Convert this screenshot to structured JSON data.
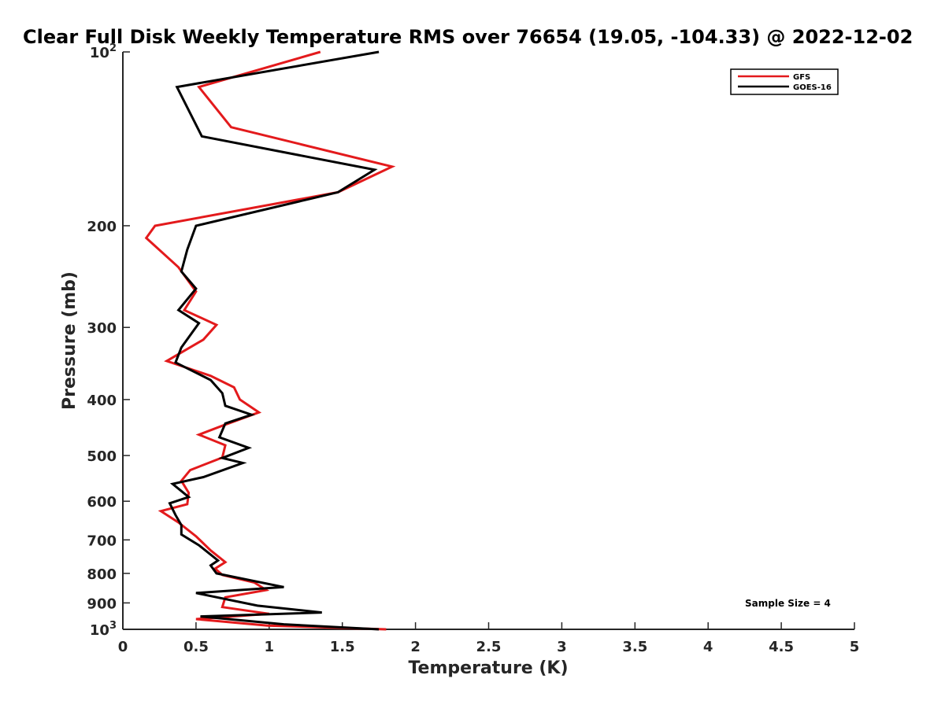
{
  "chart_data": {
    "type": "line",
    "title": "Clear Full Disk Weekly Temperature RMS over 76654 (19.05, -104.33) @ 2022-12-02",
    "xlabel": "Temperature (K)",
    "ylabel": "Pressure (mb)",
    "xlim": [
      0,
      5
    ],
    "ylim": [
      100,
      1000
    ],
    "y_scale": "log",
    "y_reversed": true,
    "grid": false,
    "legend_position": "top-right",
    "x_ticks": [
      0,
      0.5,
      1,
      1.5,
      2,
      2.5,
      3,
      3.5,
      4,
      4.5,
      5
    ],
    "x_tick_labels": [
      "0",
      "0.5",
      "1",
      "1.5",
      "2",
      "2.5",
      "3",
      "3.5",
      "4",
      "4.5",
      "5"
    ],
    "y_ticks": [
      {
        "value": 100,
        "label": "10",
        "sup": "2"
      },
      {
        "value": 200,
        "label": "200",
        "sup": ""
      },
      {
        "value": 300,
        "label": "300",
        "sup": ""
      },
      {
        "value": 400,
        "label": "400",
        "sup": ""
      },
      {
        "value": 500,
        "label": "500",
        "sup": ""
      },
      {
        "value": 600,
        "label": "600",
        "sup": ""
      },
      {
        "value": 700,
        "label": "700",
        "sup": ""
      },
      {
        "value": 800,
        "label": "800",
        "sup": ""
      },
      {
        "value": 900,
        "label": "900",
        "sup": ""
      },
      {
        "value": 1000,
        "label": "10",
        "sup": "3"
      }
    ],
    "annotation": "Sample Size = 4",
    "series": [
      {
        "name": "GFS",
        "color": "#e31a1c",
        "points": [
          [
            1.35,
            100
          ],
          [
            0.52,
            115
          ],
          [
            0.74,
            135
          ],
          [
            1.84,
            158
          ],
          [
            1.47,
            175
          ],
          [
            0.22,
            200
          ],
          [
            0.16,
            210
          ],
          [
            0.38,
            236
          ],
          [
            0.5,
            260
          ],
          [
            0.42,
            280
          ],
          [
            0.64,
            297
          ],
          [
            0.55,
            315
          ],
          [
            0.3,
            343
          ],
          [
            0.6,
            364
          ],
          [
            0.76,
            381
          ],
          [
            0.8,
            400
          ],
          [
            0.93,
            421
          ],
          [
            0.68,
            444
          ],
          [
            0.52,
            460
          ],
          [
            0.7,
            480
          ],
          [
            0.68,
            504
          ],
          [
            0.46,
            530
          ],
          [
            0.4,
            553
          ],
          [
            0.45,
            580
          ],
          [
            0.44,
            607
          ],
          [
            0.26,
            624
          ],
          [
            0.38,
            653
          ],
          [
            0.5,
            690
          ],
          [
            0.6,
            730
          ],
          [
            0.7,
            765
          ],
          [
            0.63,
            785
          ],
          [
            0.68,
            805
          ],
          [
            0.9,
            830
          ],
          [
            0.98,
            855
          ],
          [
            0.7,
            880
          ],
          [
            0.68,
            915
          ],
          [
            1.0,
            940
          ],
          [
            0.5,
            960
          ],
          [
            0.99,
            985
          ],
          [
            1.8,
            1000
          ]
        ]
      },
      {
        "name": "GOES-16",
        "color": "#000000",
        "points": [
          [
            1.75,
            100
          ],
          [
            0.37,
            115
          ],
          [
            0.54,
            140
          ],
          [
            1.72,
            160
          ],
          [
            1.47,
            175
          ],
          [
            0.5,
            200
          ],
          [
            0.44,
            220
          ],
          [
            0.4,
            240
          ],
          [
            0.5,
            257
          ],
          [
            0.38,
            280
          ],
          [
            0.52,
            295
          ],
          [
            0.4,
            325
          ],
          [
            0.36,
            345
          ],
          [
            0.6,
            370
          ],
          [
            0.68,
            390
          ],
          [
            0.7,
            410
          ],
          [
            0.88,
            425
          ],
          [
            0.7,
            440
          ],
          [
            0.66,
            465
          ],
          [
            0.86,
            485
          ],
          [
            0.68,
            505
          ],
          [
            0.82,
            515
          ],
          [
            0.55,
            545
          ],
          [
            0.34,
            560
          ],
          [
            0.45,
            590
          ],
          [
            0.32,
            605
          ],
          [
            0.36,
            634
          ],
          [
            0.4,
            660
          ],
          [
            0.4,
            685
          ],
          [
            0.52,
            715
          ],
          [
            0.65,
            760
          ],
          [
            0.6,
            775
          ],
          [
            0.64,
            800
          ],
          [
            1.1,
            845
          ],
          [
            0.5,
            865
          ],
          [
            0.92,
            910
          ],
          [
            1.36,
            935
          ],
          [
            0.53,
            950
          ],
          [
            1.1,
            980
          ],
          [
            1.75,
            1000
          ]
        ]
      }
    ]
  }
}
